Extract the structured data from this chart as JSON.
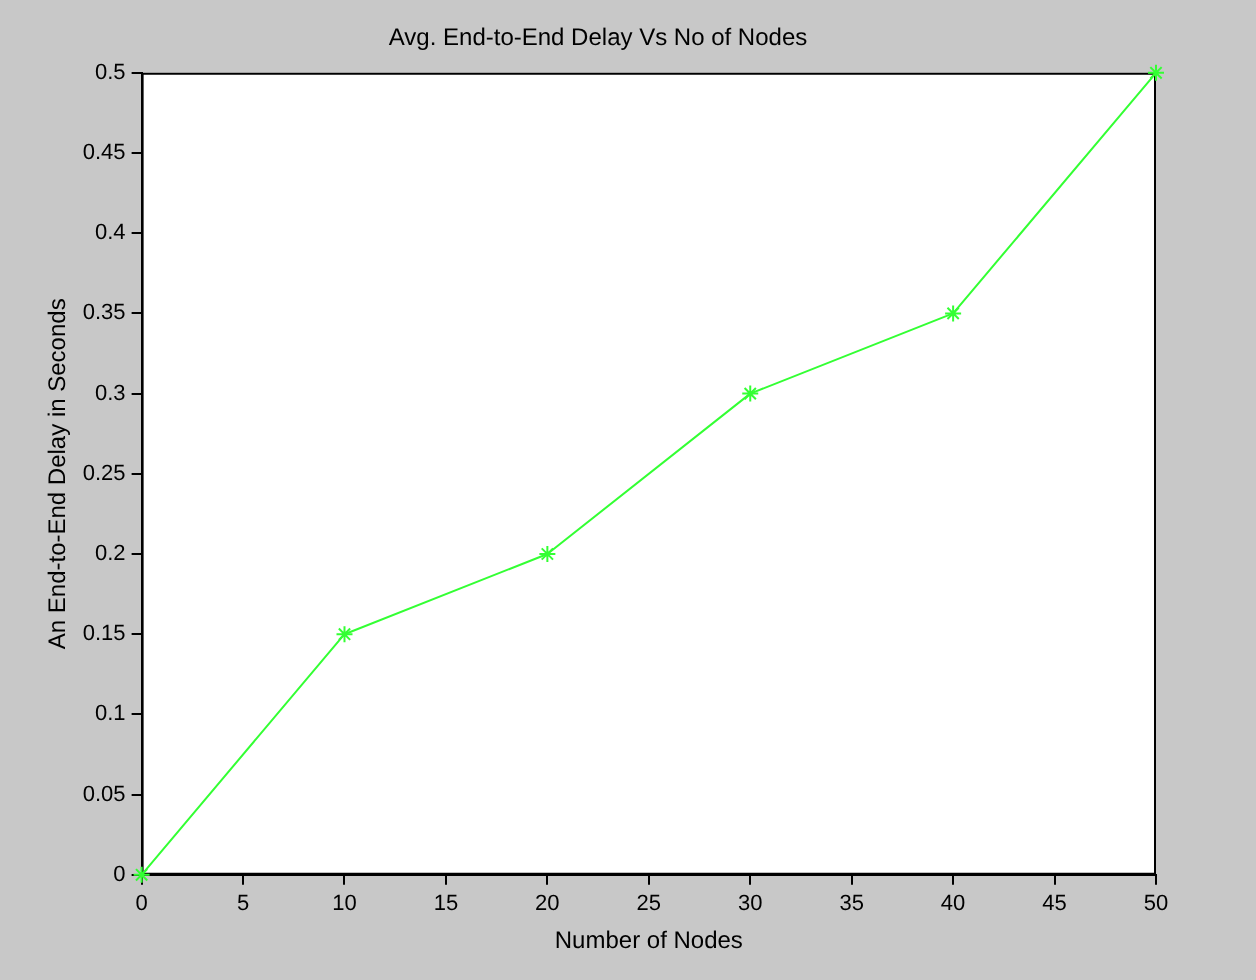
{
  "chart_data": {
    "type": "line",
    "title": "Avg. End-to-End Delay Vs No of Nodes",
    "xlabel": "Number of Nodes",
    "ylabel": "An End-to-End Delay in Seconds",
    "x": [
      0,
      10,
      20,
      30,
      40,
      50
    ],
    "series": [
      {
        "color": "#33ff33",
        "values": [
          0,
          0.15,
          0.2,
          0.3,
          0.35,
          0.5
        ]
      }
    ],
    "xlim": [
      0,
      50
    ],
    "xticks": [
      0,
      5,
      10,
      15,
      20,
      25,
      30,
      35,
      40,
      45,
      50
    ],
    "ylim": [
      0,
      0.5
    ],
    "yticks": [
      0,
      0.05,
      0.1,
      0.15,
      0.2,
      0.25,
      0.3,
      0.35,
      0.4,
      0.45,
      0.5
    ],
    "grid": false,
    "legend": false,
    "marker": "cross",
    "line_style": "solid"
  }
}
